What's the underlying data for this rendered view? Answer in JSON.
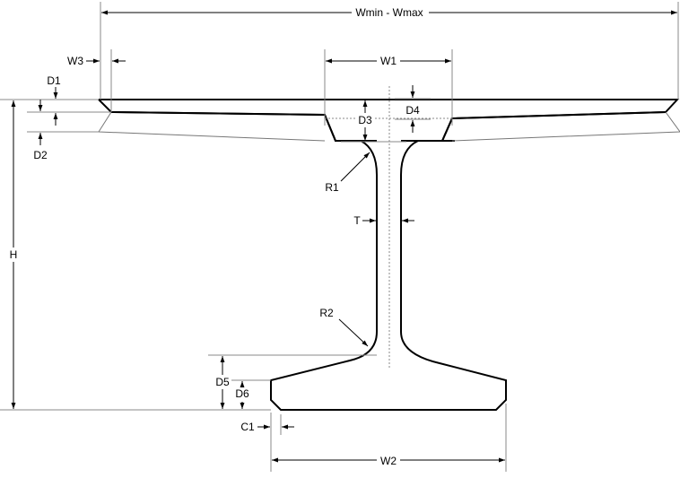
{
  "labels": {
    "width_range": "Wmin - Wmax",
    "w1": "W1",
    "w2": "W2",
    "w3": "W3",
    "d1": "D1",
    "d2": "D2",
    "d3": "D3",
    "d4": "D4",
    "d5": "D5",
    "d6": "D6",
    "h": "H",
    "t": "T",
    "r1": "R1",
    "r2": "R2",
    "c1": "C1"
  },
  "colors": {
    "outline": "#000000",
    "dimension": "#000000",
    "guide": "#999999",
    "background": "#ffffff"
  }
}
